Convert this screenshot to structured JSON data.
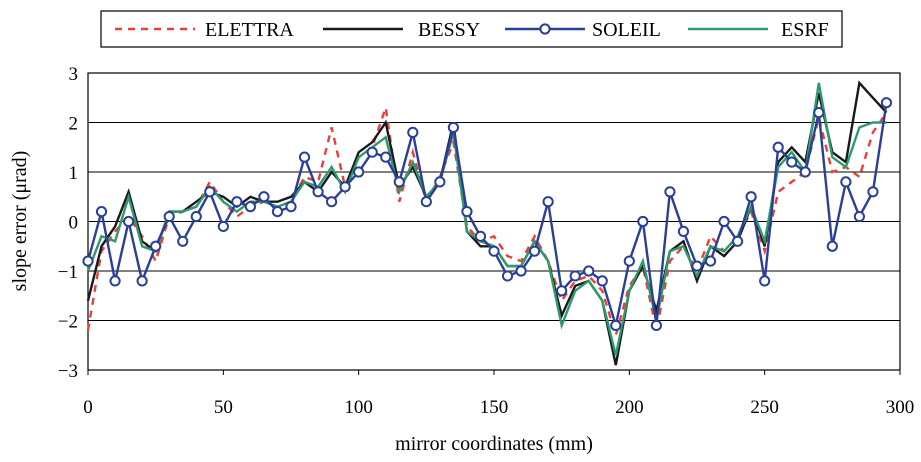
{
  "chart_data": {
    "type": "line",
    "title": "",
    "xlabel": "mirror coordinates (mm)",
    "ylabel": "slope error (μrad)",
    "xlim": [
      0,
      300
    ],
    "ylim": [
      -3,
      3
    ],
    "xticks": [
      0,
      50,
      100,
      150,
      200,
      250,
      300
    ],
    "yticks": [
      -3,
      -2,
      -1,
      0,
      1,
      2,
      3
    ],
    "xtick_labels": [
      "0",
      "50",
      "100",
      "150",
      "200",
      "250",
      "300"
    ],
    "ytick_labels": [
      "−3",
      "−2",
      "−1",
      "0",
      "1",
      "2",
      "3"
    ],
    "grid": "horizontal",
    "legend_position": "top",
    "x": [
      0,
      5,
      10,
      15,
      20,
      25,
      30,
      35,
      40,
      45,
      50,
      55,
      60,
      65,
      70,
      75,
      80,
      85,
      90,
      95,
      100,
      105,
      110,
      115,
      120,
      125,
      130,
      135,
      140,
      145,
      150,
      155,
      160,
      165,
      170,
      175,
      180,
      185,
      190,
      195,
      200,
      205,
      210,
      215,
      220,
      225,
      230,
      235,
      240,
      245,
      250,
      255,
      260,
      265,
      270,
      275,
      280,
      285,
      290,
      295
    ],
    "series": [
      {
        "name": "ELETTRA",
        "color": "#e8403a",
        "style": "dashed",
        "marker": "none",
        "values": [
          -2.2,
          -0.6,
          -0.2,
          0.1,
          -0.3,
          -0.8,
          0.1,
          0.2,
          0.3,
          0.8,
          0.4,
          0.1,
          0.3,
          0.4,
          0.3,
          0.4,
          0.9,
          0.8,
          1.9,
          0.7,
          1.3,
          1.5,
          2.3,
          0.4,
          1.4,
          0.4,
          0.9,
          1.6,
          -0.1,
          -0.4,
          -0.3,
          -0.7,
          -0.8,
          -0.3,
          -0.8,
          -1.6,
          -1.2,
          -1.1,
          -1.4,
          -2.3,
          -1.3,
          -0.9,
          -2.2,
          -0.8,
          -0.5,
          -1.0,
          -0.3,
          -0.6,
          -0.3,
          0.2,
          -0.6,
          0.6,
          0.8,
          1.0,
          2.1,
          1.0,
          1.1,
          0.9,
          1.8,
          2.2
        ]
      },
      {
        "name": "BESSY",
        "color": "#1a1a1a",
        "style": "solid",
        "marker": "none",
        "values": [
          -1.6,
          -0.5,
          -0.1,
          0.6,
          -0.4,
          -0.6,
          0.2,
          0.2,
          0.4,
          0.6,
          0.5,
          0.3,
          0.5,
          0.4,
          0.4,
          0.5,
          0.8,
          0.6,
          1.0,
          0.7,
          1.4,
          1.6,
          2.0,
          0.7,
          1.1,
          0.5,
          0.8,
          2.0,
          -0.2,
          -0.5,
          -0.5,
          -0.9,
          -0.9,
          -0.4,
          -0.8,
          -1.9,
          -1.3,
          -1.2,
          -1.6,
          -2.9,
          -1.4,
          -0.9,
          -1.8,
          -0.6,
          -0.4,
          -1.2,
          -0.5,
          -0.7,
          -0.4,
          0.3,
          -0.5,
          1.2,
          1.5,
          1.2,
          2.6,
          1.4,
          1.2,
          2.8,
          2.5,
          2.2
        ]
      },
      {
        "name": "SOLEIL",
        "color": "#2a3f9a",
        "style": "solid",
        "marker": "circle",
        "values": [
          -0.8,
          0.2,
          -1.2,
          0.0,
          -1.2,
          -0.5,
          0.1,
          -0.4,
          0.1,
          0.6,
          -0.1,
          0.4,
          0.3,
          0.5,
          0.2,
          0.3,
          1.3,
          0.6,
          0.4,
          0.7,
          1.0,
          1.4,
          1.3,
          0.8,
          1.8,
          0.4,
          0.8,
          1.9,
          0.2,
          -0.3,
          -0.6,
          -1.1,
          -1.0,
          -0.6,
          0.4,
          -1.4,
          -1.1,
          -1.0,
          -1.2,
          -2.1,
          -0.8,
          0.0,
          -2.1,
          0.6,
          -0.2,
          -0.9,
          -0.8,
          0.0,
          -0.4,
          0.5,
          -1.2,
          1.5,
          1.2,
          1.0,
          2.2,
          -0.5,
          0.8,
          0.1,
          0.6,
          2.4
        ]
      },
      {
        "name": "ESRF",
        "color": "#2e9a6e",
        "style": "solid",
        "marker": "none",
        "values": [
          -1.0,
          -0.3,
          -0.4,
          0.5,
          -0.5,
          -0.6,
          0.2,
          0.2,
          0.3,
          0.7,
          0.4,
          0.2,
          0.4,
          0.4,
          0.3,
          0.4,
          0.8,
          0.7,
          1.1,
          0.6,
          1.3,
          1.5,
          1.7,
          0.6,
          1.2,
          0.5,
          0.8,
          1.8,
          -0.2,
          -0.4,
          -0.5,
          -0.9,
          -0.9,
          -0.4,
          -0.8,
          -2.1,
          -1.4,
          -1.2,
          -1.6,
          -2.7,
          -1.4,
          -0.8,
          -2.0,
          -0.6,
          -0.5,
          -1.1,
          -0.5,
          -0.6,
          -0.3,
          0.3,
          -0.4,
          1.1,
          1.4,
          1.0,
          2.8,
          1.3,
          1.1,
          1.9,
          2.0,
          2.0
        ]
      }
    ]
  }
}
